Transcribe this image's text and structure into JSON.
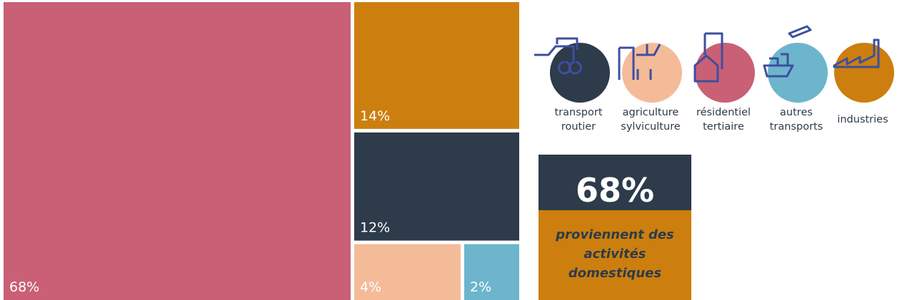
{
  "chart_data": {
    "type": "treemap",
    "categories": [
      "résidentiel tertiaire",
      "industries",
      "transport routier",
      "agriculture sylviculture",
      "autres transports"
    ],
    "values": [
      68,
      14,
      12,
      4,
      2
    ],
    "value_labels": [
      "68%",
      "14%",
      "12%",
      "4%",
      "2%"
    ],
    "colors": [
      "#c96075",
      "#cc7f0e",
      "#2d3b4b",
      "#f4bb98",
      "#6db5cc"
    ],
    "callout": {
      "value": "68%",
      "text": "proviennent des activités domestiques"
    }
  }
}
